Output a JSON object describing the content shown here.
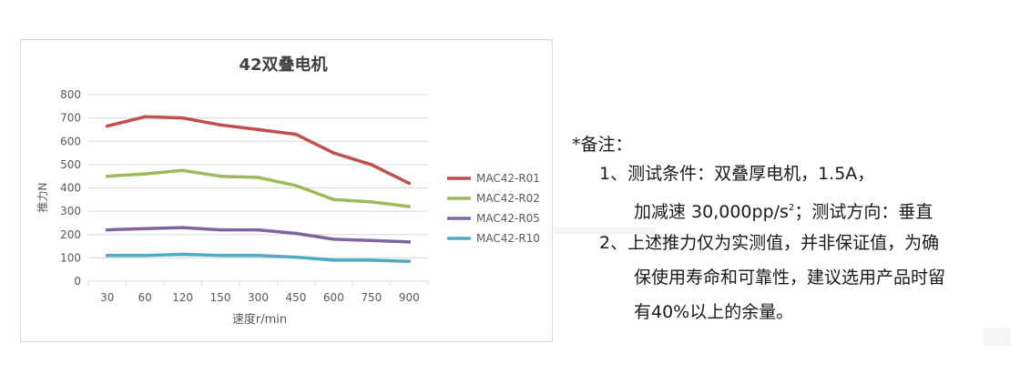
{
  "colors": {
    "r01": "#c0504d",
    "r02": "#9bbb59",
    "r05": "#8064a2",
    "r10": "#4bacc6",
    "grid": "#d9d9d9",
    "axis_text": "#595959",
    "title_text": "#404040"
  },
  "chart_data": {
    "type": "line",
    "title": "42双叠电机",
    "xlabel": "速度r/min",
    "ylabel": "推力N",
    "categories": [
      "30",
      "60",
      "120",
      "150",
      "300",
      "450",
      "600",
      "750",
      "900"
    ],
    "yticks": [
      "0",
      "100",
      "200",
      "300",
      "400",
      "500",
      "600",
      "700",
      "800"
    ],
    "ylim": [
      0,
      800
    ],
    "grid": true,
    "legend_position": "right",
    "series": [
      {
        "name": "MAC42-R01",
        "color": "#c0504d",
        "values": [
          665,
          705,
          700,
          670,
          650,
          630,
          550,
          500,
          420
        ]
      },
      {
        "name": "MAC42-R02",
        "color": "#9bbb59",
        "values": [
          450,
          460,
          475,
          450,
          445,
          410,
          350,
          340,
          320
        ]
      },
      {
        "name": "MAC42-R05",
        "color": "#8064a2",
        "values": [
          220,
          225,
          230,
          220,
          220,
          205,
          180,
          175,
          168
        ]
      },
      {
        "name": "MAC42-R10",
        "color": "#4bacc6",
        "values": [
          110,
          110,
          115,
          110,
          110,
          103,
          90,
          90,
          85
        ]
      }
    ]
  },
  "notes": {
    "heading": "*备注：",
    "item1_line1": "1、测试条件：双叠厚电机，1.5A，",
    "item1_line2_prefix": "加减速 30,000pp/s",
    "item1_line2_sup": "2",
    "item1_line2_suffix": "；测试方向：垂直",
    "item2_line1": "2、上述推力仅为实测值，并非保证值，为确",
    "item2_line2": "保使用寿命和可靠性，建议选用产品时留",
    "item2_line3": "有40%以上的余量。"
  }
}
